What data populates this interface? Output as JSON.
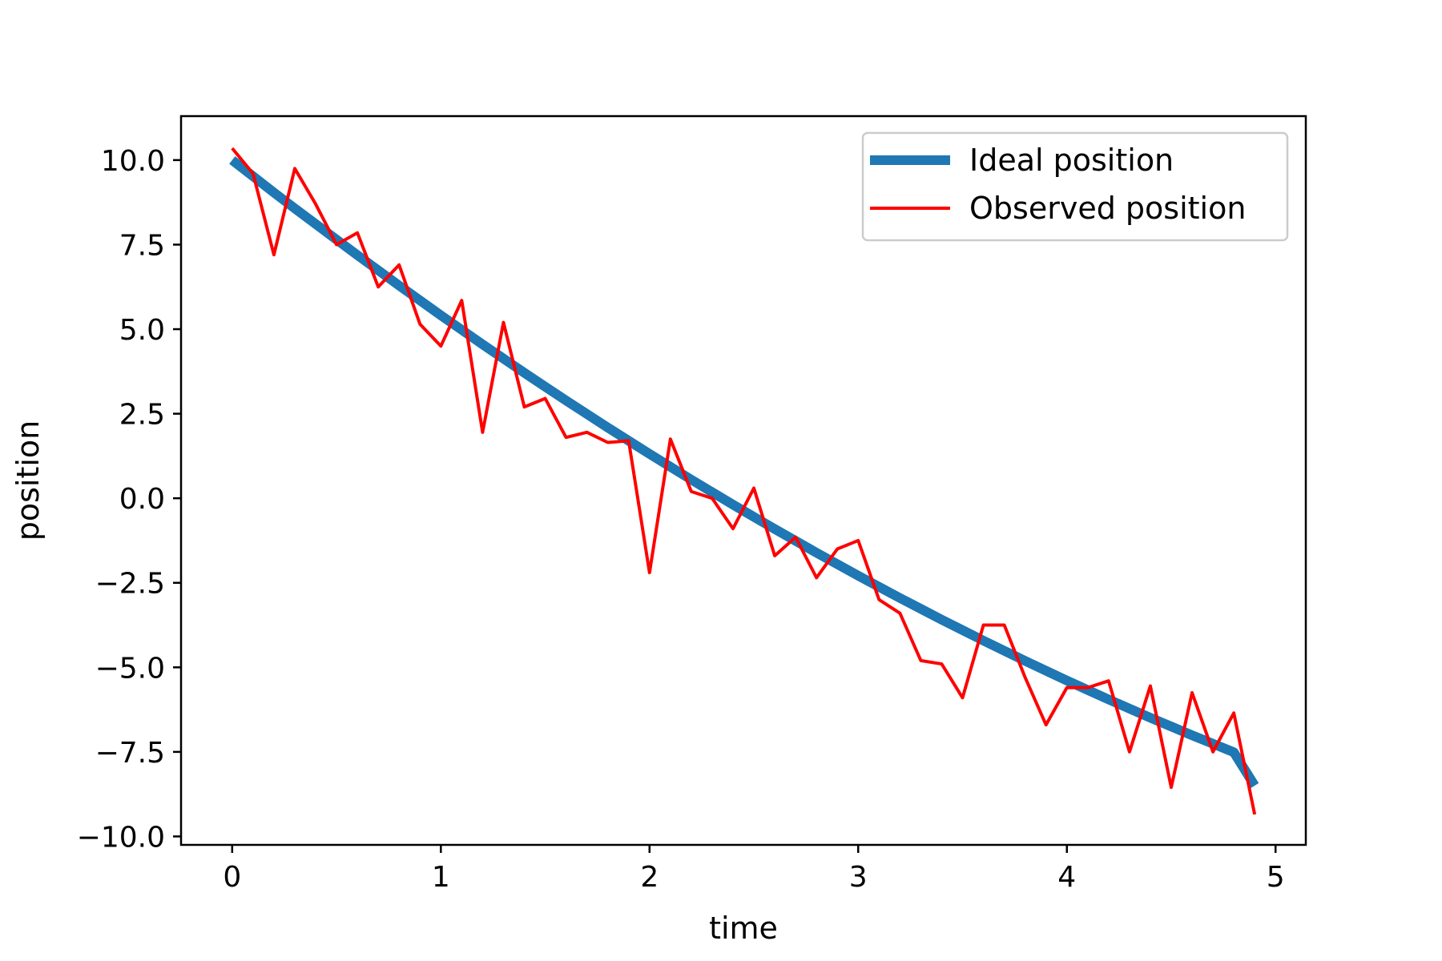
{
  "chart_data": {
    "type": "line",
    "title": "",
    "xlabel": "time",
    "ylabel": "position",
    "xlim": [
      -0.245,
      5.145
    ],
    "ylim": [
      -10.25,
      11.3
    ],
    "xticks": [
      0,
      1,
      2,
      3,
      4,
      5
    ],
    "xtick_labels": [
      "0",
      "1",
      "2",
      "3",
      "4",
      "5"
    ],
    "yticks": [
      10.0,
      7.5,
      5.0,
      2.5,
      0.0,
      -2.5,
      -5.0,
      -7.5,
      -10.0
    ],
    "ytick_labels": [
      "10.0",
      "7.5",
      "5.0",
      "2.5",
      "0.0",
      "−2.5",
      "−5.0",
      "−7.5",
      "−10.0"
    ],
    "grid": false,
    "legend_position": "top-right",
    "x": [
      0,
      0.1,
      0.2,
      0.3,
      0.4,
      0.5,
      0.6,
      0.7,
      0.8,
      0.9,
      1.0,
      1.1,
      1.2,
      1.3,
      1.4,
      1.5,
      1.6,
      1.7,
      1.8,
      1.9,
      2.0,
      2.1,
      2.2,
      2.3,
      2.4,
      2.5,
      2.6,
      2.7,
      2.8,
      2.9,
      3.0,
      3.1,
      3.2,
      3.3,
      3.4,
      3.5,
      3.6,
      3.7,
      3.8,
      3.9,
      4.0,
      4.1,
      4.2,
      4.3,
      4.4,
      4.5,
      4.6,
      4.7,
      4.8,
      4.9
    ],
    "series": [
      {
        "name": "Ideal position",
        "color": "#1f77b4",
        "values": [
          10.0,
          9.52,
          9.04,
          8.57,
          8.11,
          7.65,
          7.19,
          6.74,
          6.29,
          5.85,
          5.41,
          4.98,
          4.55,
          4.13,
          3.71,
          3.3,
          2.89,
          2.49,
          2.09,
          1.7,
          1.31,
          0.93,
          0.55,
          0.18,
          -0.19,
          -0.55,
          -0.91,
          -1.26,
          -1.61,
          -1.95,
          -2.29,
          -2.62,
          -2.95,
          -3.27,
          -3.59,
          -3.9,
          -4.21,
          -4.51,
          -4.81,
          -5.1,
          -5.39,
          -5.67,
          -5.95,
          -6.22,
          -6.49,
          -6.75,
          -7.01,
          -7.26,
          -7.51,
          -8.5
        ]
      },
      {
        "name": "Observed position",
        "color": "#ff0000",
        "values": [
          10.35,
          9.6,
          7.2,
          9.75,
          8.7,
          7.5,
          7.85,
          6.25,
          6.9,
          5.15,
          4.5,
          5.85,
          1.95,
          5.2,
          2.7,
          2.95,
          1.8,
          1.95,
          1.65,
          1.7,
          -2.2,
          1.75,
          0.2,
          0.0,
          -0.9,
          0.3,
          -1.7,
          -1.15,
          -2.35,
          -1.5,
          -1.25,
          -3.0,
          -3.4,
          -4.8,
          -4.9,
          -5.9,
          -3.75,
          -3.75,
          -5.3,
          -6.7,
          -5.6,
          -5.6,
          -5.4,
          -7.5,
          -5.55,
          -8.55,
          -5.75,
          -7.5,
          -6.35,
          -9.35
        ]
      }
    ]
  }
}
